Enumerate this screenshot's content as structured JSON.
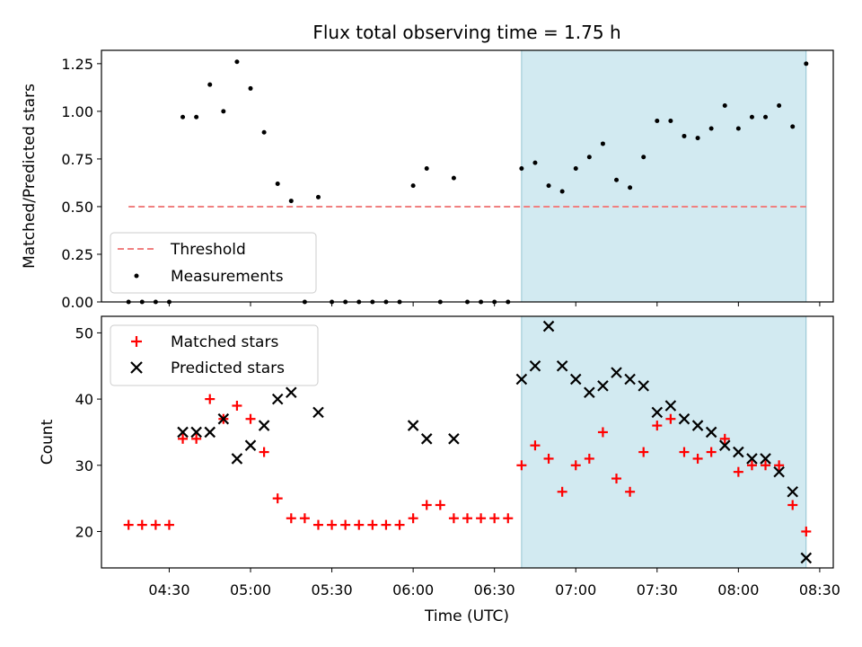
{
  "figure": {
    "title": "Flux total observing time = 1.75 h"
  },
  "chart_data": [
    {
      "type": "scatter",
      "ylabel": "Matched/Predicted stars",
      "xlabel": "",
      "xlim": [
        "04:05",
        "08:35"
      ],
      "ylim": [
        0,
        1.32
      ],
      "y_ticks": [
        "0.00",
        "0.25",
        "0.50",
        "0.75",
        "1.00",
        "1.25"
      ],
      "y_tick_values": [
        0,
        0.25,
        0.5,
        0.75,
        1.0,
        1.25
      ],
      "shaded_region": {
        "x": [
          "06:40",
          "08:25"
        ],
        "color": "#add8e6"
      },
      "threshold": {
        "name": "Threshold",
        "value": 0.5,
        "x": [
          "04:15",
          "08:25"
        ],
        "color": "#f08080"
      },
      "series": [
        {
          "name": "Measurements",
          "marker": "dot",
          "color": "#000000",
          "x": [
            "04:15",
            "04:20",
            "04:25",
            "04:30",
            "04:35",
            "04:40",
            "04:45",
            "04:50",
            "04:55",
            "05:00",
            "05:05",
            "05:10",
            "05:15",
            "05:20",
            "05:25",
            "05:30",
            "05:35",
            "05:40",
            "05:45",
            "05:50",
            "05:55",
            "06:00",
            "06:05",
            "06:10",
            "06:15",
            "06:20",
            "06:25",
            "06:30",
            "06:35",
            "06:40",
            "06:45",
            "06:50",
            "06:55",
            "07:00",
            "07:05",
            "07:10",
            "07:15",
            "07:20",
            "07:25",
            "07:30",
            "07:35",
            "07:40",
            "07:45",
            "07:50",
            "07:55",
            "08:00",
            "08:05",
            "08:10",
            "08:15",
            "08:20",
            "08:25"
          ],
          "y": [
            0,
            0,
            0,
            0,
            0.97,
            0.97,
            1.14,
            1.0,
            1.26,
            1.12,
            0.89,
            0.62,
            0.53,
            0,
            0.55,
            0,
            0,
            0,
            0,
            0,
            0,
            0.61,
            0.7,
            0,
            0.65,
            0,
            0,
            0,
            0,
            0.7,
            0.73,
            0.61,
            0.58,
            0.7,
            0.76,
            0.83,
            0.64,
            0.6,
            0.76,
            0.95,
            0.95,
            0.87,
            0.86,
            0.91,
            1.03,
            0.91,
            0.97,
            0.97,
            1.03,
            0.92,
            1.25
          ]
        }
      ],
      "legend": {
        "placement": "lower-left",
        "entries": [
          "Threshold",
          "Measurements"
        ]
      },
      "grid": false
    },
    {
      "type": "scatter",
      "ylabel": "Count",
      "xlabel": "Time (UTC)",
      "xlim": [
        "04:05",
        "08:35"
      ],
      "ylim": [
        14.5,
        52.5
      ],
      "x_ticks": [
        "04:30",
        "05:00",
        "05:30",
        "06:00",
        "06:30",
        "07:00",
        "07:30",
        "08:00",
        "08:30"
      ],
      "y_ticks": [
        "20",
        "30",
        "40",
        "50"
      ],
      "y_tick_values": [
        20,
        30,
        40,
        50
      ],
      "shaded_region": {
        "x": [
          "06:40",
          "08:25"
        ],
        "color": "#add8e6"
      },
      "series": [
        {
          "name": "Matched stars",
          "marker": "plus",
          "color": "#ff0000",
          "x": [
            "04:15",
            "04:20",
            "04:25",
            "04:30",
            "04:35",
            "04:40",
            "04:45",
            "04:50",
            "04:55",
            "05:00",
            "05:05",
            "05:10",
            "05:15",
            "05:20",
            "05:25",
            "05:30",
            "05:35",
            "05:40",
            "05:45",
            "05:50",
            "05:55",
            "06:00",
            "06:05",
            "06:10",
            "06:15",
            "06:20",
            "06:25",
            "06:30",
            "06:35",
            "06:40",
            "06:45",
            "06:50",
            "06:55",
            "07:00",
            "07:05",
            "07:10",
            "07:15",
            "07:20",
            "07:25",
            "07:30",
            "07:35",
            "07:40",
            "07:45",
            "07:50",
            "07:55",
            "08:00",
            "08:05",
            "08:10",
            "08:15",
            "08:20",
            "08:25"
          ],
          "y": [
            21,
            21,
            21,
            21,
            34,
            34,
            40,
            37,
            39,
            37,
            32,
            25,
            22,
            22,
            21,
            21,
            21,
            21,
            21,
            21,
            21,
            22,
            24,
            24,
            22,
            22,
            22,
            22,
            22,
            30,
            33,
            31,
            26,
            30,
            31,
            35,
            28,
            26,
            32,
            36,
            37,
            32,
            31,
            32,
            34,
            29,
            30,
            30,
            30,
            24,
            20
          ]
        },
        {
          "name": "Predicted stars",
          "marker": "cross",
          "color": "#000000",
          "x": [
            "04:35",
            "04:40",
            "04:45",
            "04:50",
            "04:55",
            "05:00",
            "05:05",
            "05:10",
            "05:15",
            "05:25",
            "06:00",
            "06:05",
            "06:15",
            "06:40",
            "06:45",
            "06:50",
            "06:55",
            "07:00",
            "07:05",
            "07:10",
            "07:15",
            "07:20",
            "07:25",
            "07:30",
            "07:35",
            "07:40",
            "07:45",
            "07:50",
            "07:55",
            "08:00",
            "08:05",
            "08:10",
            "08:15",
            "08:20",
            "08:25"
          ],
          "y": [
            35,
            35,
            35,
            37,
            31,
            33,
            36,
            40,
            41,
            38,
            36,
            34,
            34,
            43,
            45,
            51,
            45,
            43,
            41,
            42,
            44,
            43,
            42,
            38,
            39,
            37,
            36,
            35,
            33,
            32,
            31,
            31,
            29,
            26,
            16
          ]
        }
      ],
      "legend": {
        "placement": "upper-left",
        "entries": [
          "Matched stars",
          "Predicted stars"
        ]
      },
      "grid": false
    }
  ]
}
